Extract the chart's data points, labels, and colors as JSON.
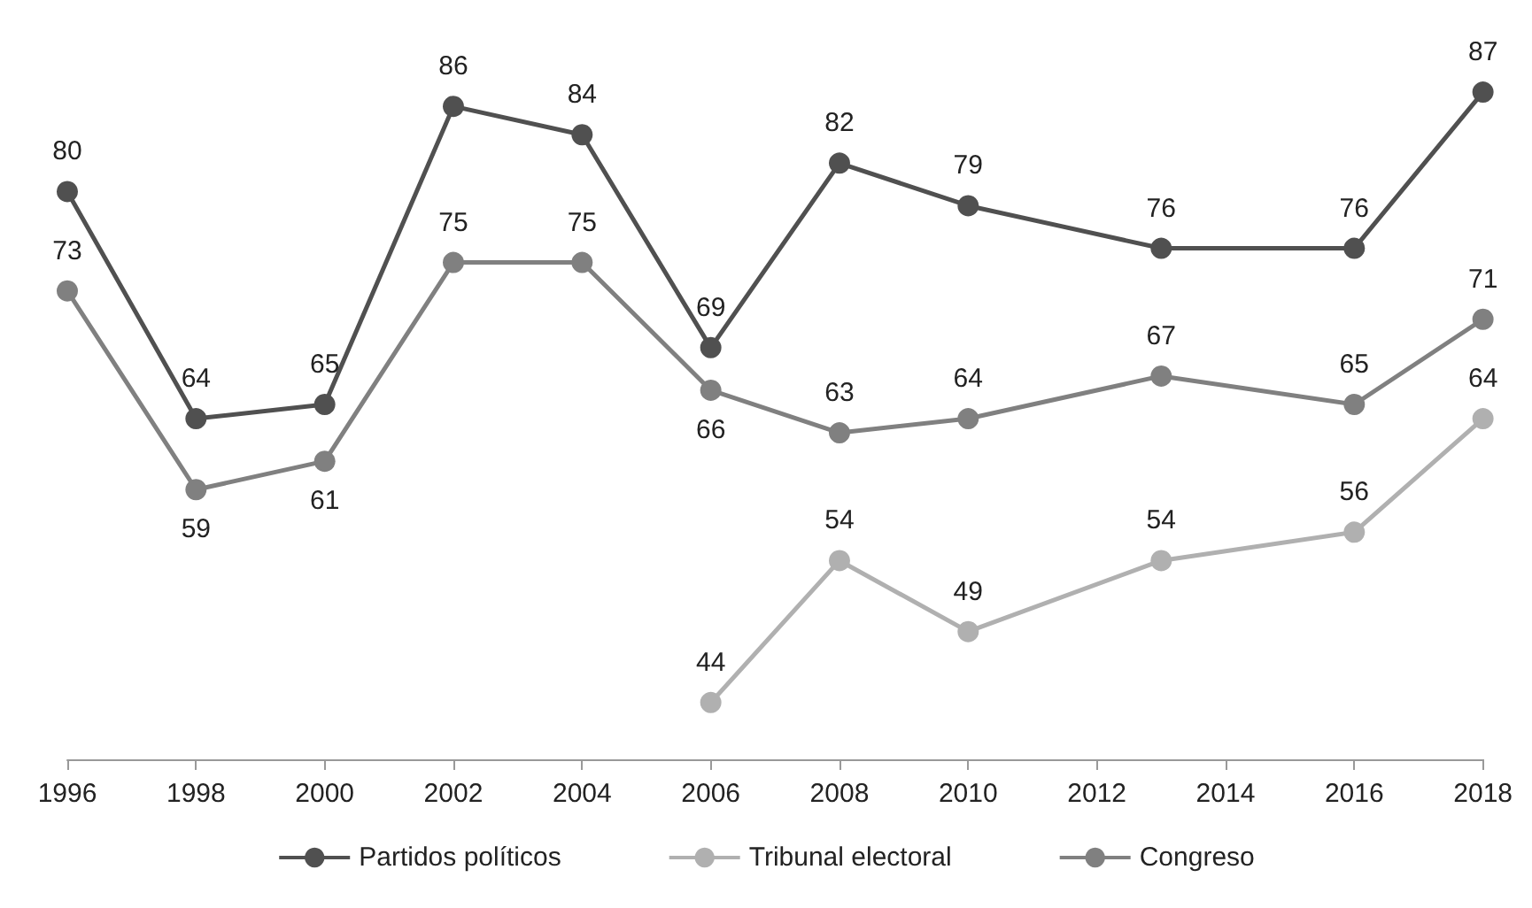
{
  "chart_data": {
    "type": "line",
    "x": [
      1996,
      1998,
      2000,
      2002,
      2004,
      2006,
      2008,
      2010,
      2013,
      2016,
      2018
    ],
    "series": [
      {
        "name": "Partidos políticos",
        "color": "#505050",
        "values": [
          80,
          64,
          65,
          86,
          84,
          69,
          82,
          79,
          76,
          76,
          87
        ]
      },
      {
        "name": "Tribunal electoral",
        "color": "#b0b0b0",
        "values": [
          null,
          null,
          null,
          null,
          null,
          44,
          54,
          49,
          54,
          56,
          64
        ]
      },
      {
        "name": "Congreso",
        "color": "#808080",
        "values": [
          73,
          59,
          61,
          75,
          75,
          66,
          63,
          64,
          67,
          65,
          71
        ]
      }
    ],
    "xlim": [
      1996,
      2018
    ],
    "xticks": [
      1996,
      1998,
      2000,
      2002,
      2004,
      2006,
      2008,
      2010,
      2012,
      2014,
      2016,
      2018
    ],
    "tick_labels": "x",
    "data_labels": true,
    "grid": false,
    "legend": "bottom",
    "marker": "circle",
    "line_style": "solid"
  }
}
